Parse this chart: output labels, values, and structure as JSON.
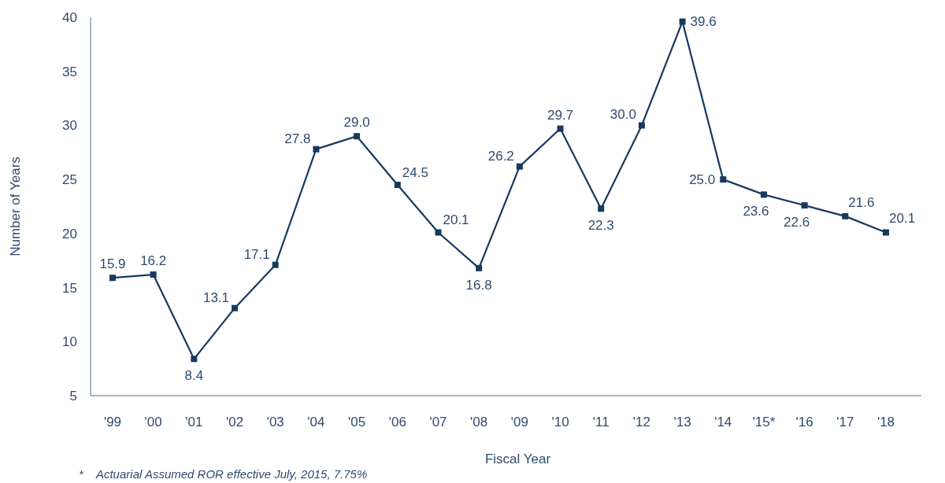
{
  "chart_data": {
    "type": "line",
    "xlabel": "Fiscal Year",
    "ylabel": "Number of Years",
    "categories": [
      "'99",
      "'00",
      "'01",
      "'02",
      "'03",
      "'04",
      "'05",
      "'06",
      "'07",
      "'08",
      "'09",
      "'10",
      "'11",
      "'12",
      "'13",
      "'14",
      "'15*",
      "'16",
      "'17",
      "'18"
    ],
    "series": [
      {
        "color": "#173a5e",
        "values": [
          15.9,
          16.2,
          8.4,
          13.1,
          17.1,
          27.8,
          29.0,
          24.5,
          20.1,
          16.8,
          26.2,
          29.7,
          22.3,
          30.0,
          39.6,
          25.0,
          23.6,
          22.6,
          21.6,
          20.1
        ]
      }
    ],
    "value_labels": [
      "15.9",
      "16.2",
      "8.4",
      "13.1",
      "17.1",
      "27.8",
      "29.0",
      "24.5",
      "20.1",
      "16.8",
      "26.2",
      "29.7",
      "22.3",
      "30.0",
      "39.6",
      "25.0",
      "23.6",
      "22.6",
      "21.6",
      "20.1"
    ],
    "ylim": [
      5,
      40
    ],
    "yticks": [
      5,
      10,
      15,
      20,
      25,
      30,
      35,
      40
    ],
    "marker": "square",
    "line_style": "solid",
    "grid": false,
    "annotations": [
      "*    Actuarial Assumed ROR effective July, 2015, 7.75%"
    ]
  }
}
